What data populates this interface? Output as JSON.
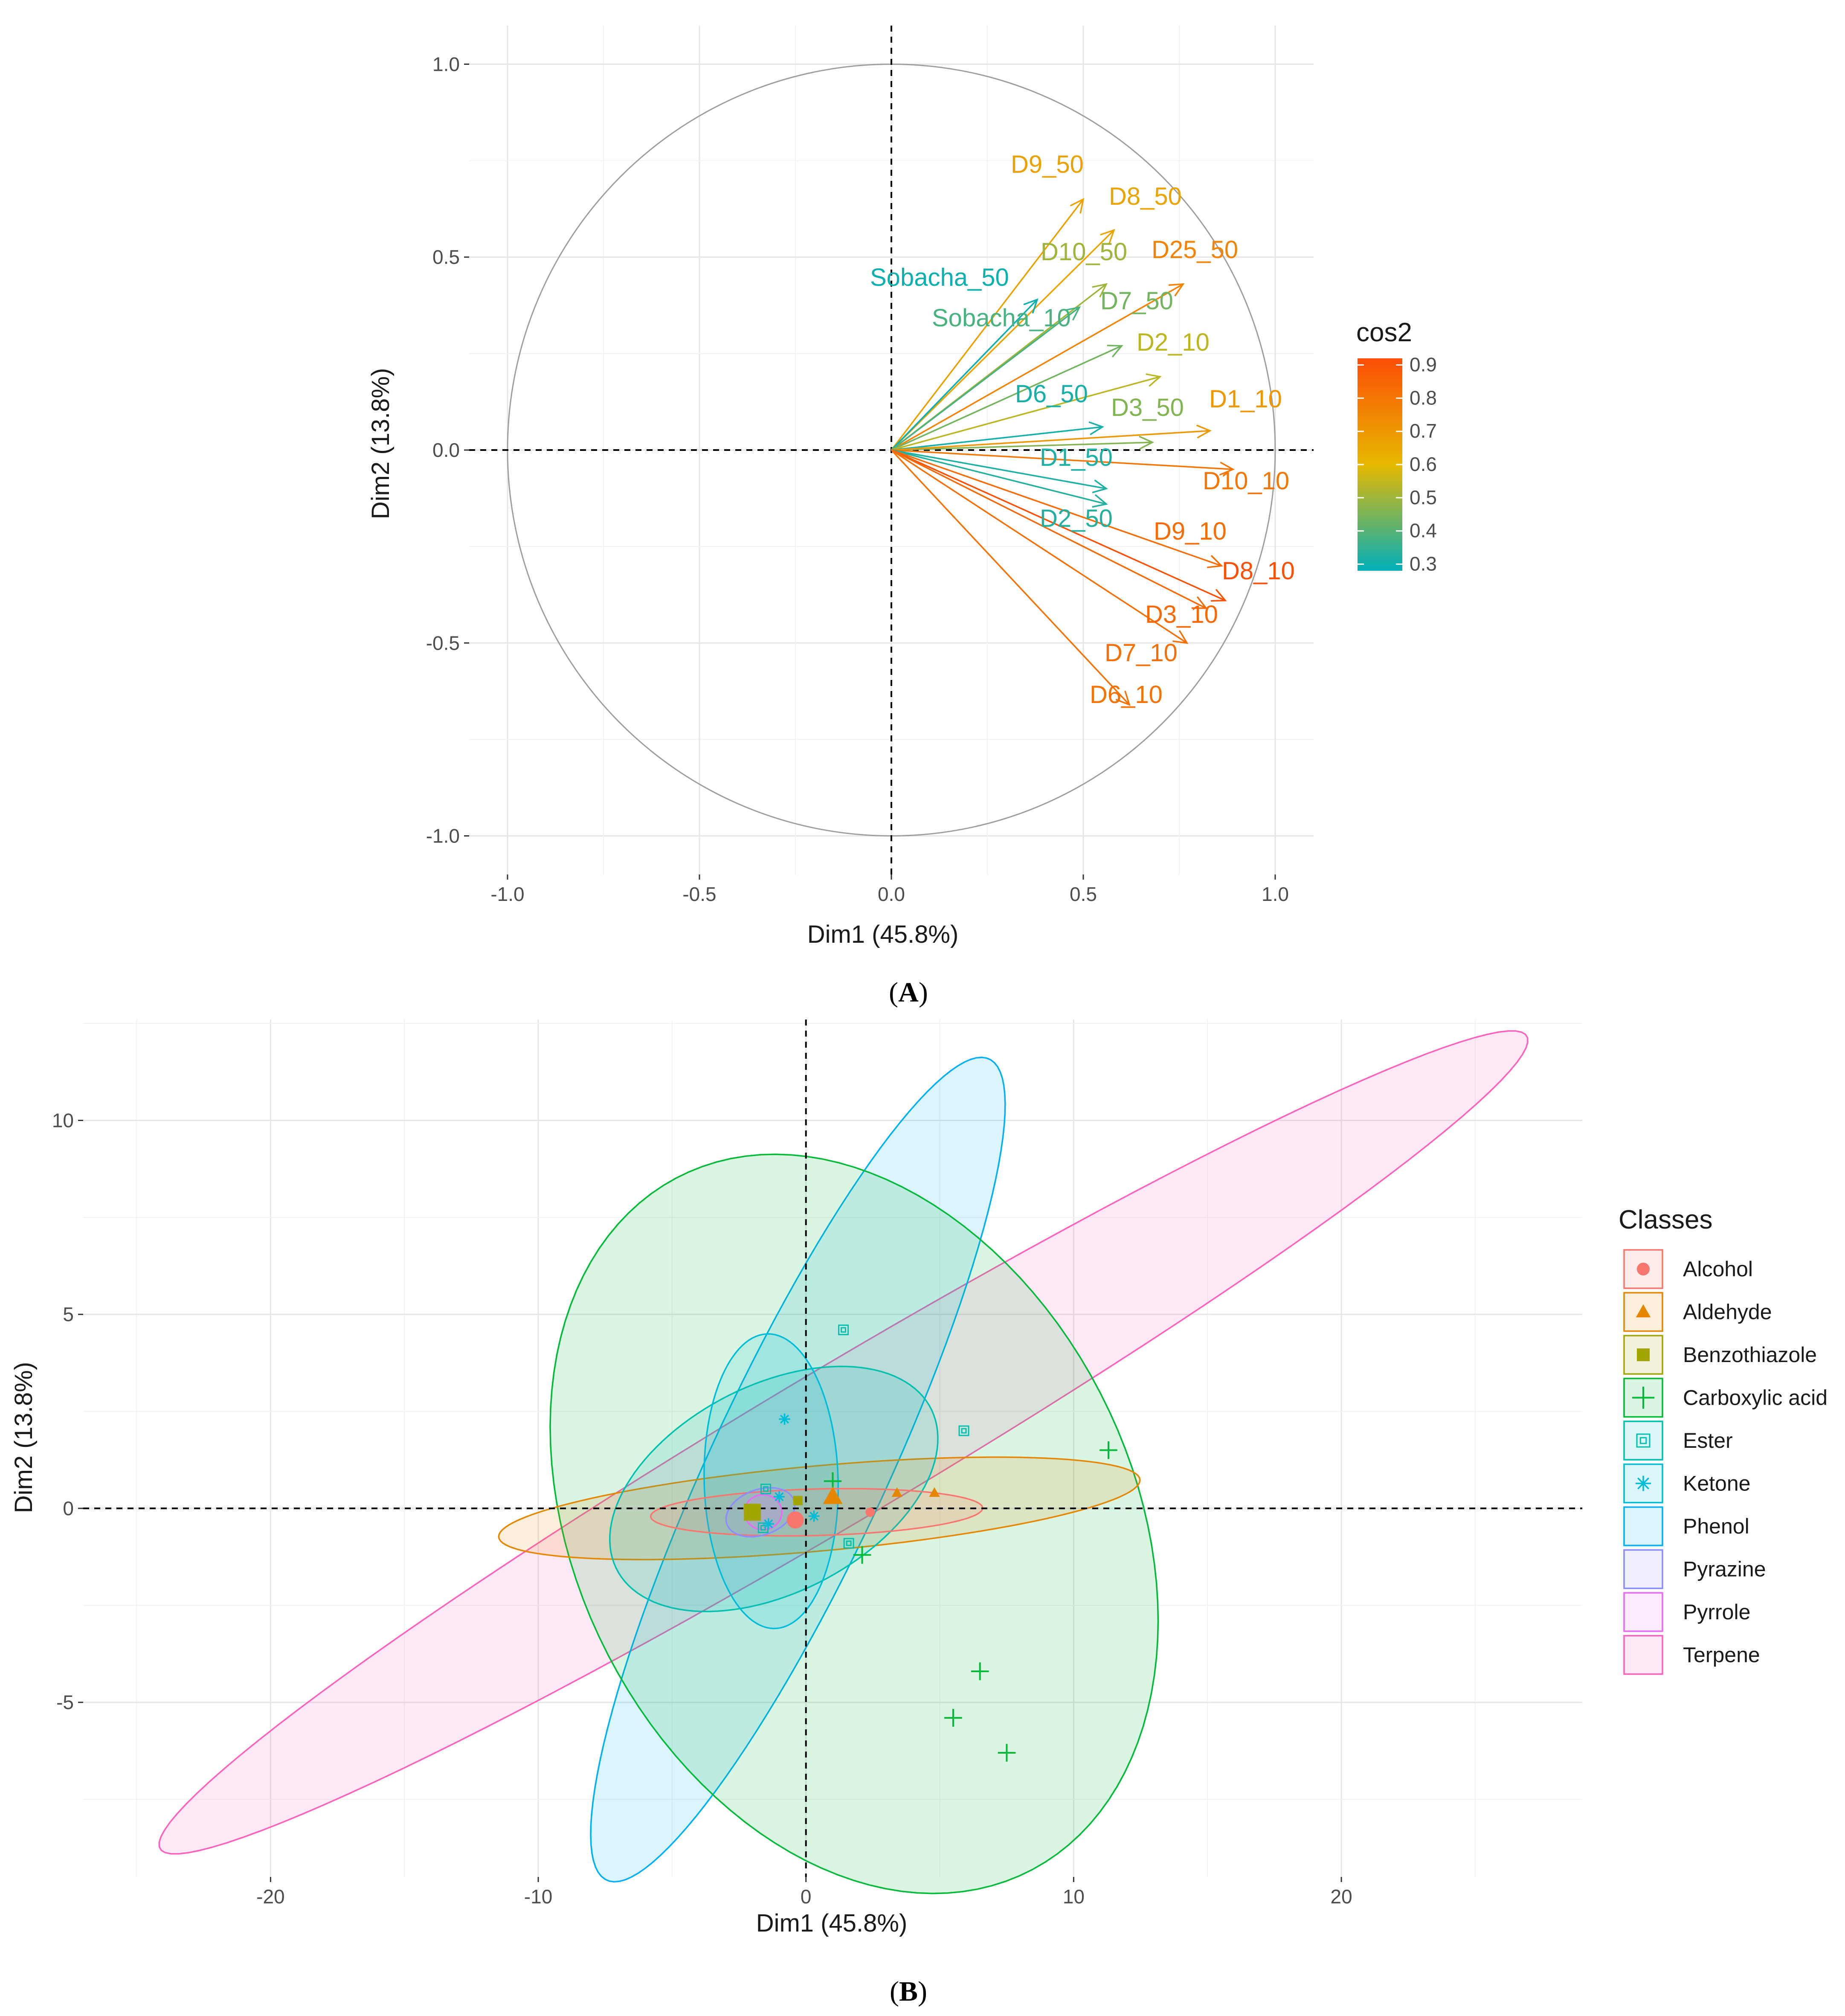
{
  "chart_data": [
    {
      "type": "scatter",
      "subtype": "pca-variable-correlation-circle",
      "caption": "A",
      "xlabel": "Dim1 (45.8%)",
      "ylabel": "Dim2 (13.8%)",
      "xlim": [
        -1.1,
        1.1
      ],
      "ylim": [
        -1.1,
        1.1
      ],
      "x_ticks": [
        "-1.0",
        "-0.5",
        "0.0",
        "0.5",
        "1.0"
      ],
      "y_ticks": [
        "-1.0",
        "-0.5",
        "0.0",
        "0.5",
        "1.0"
      ],
      "grid": true,
      "legend": {
        "title": "cos2",
        "position": "right",
        "ticks": [
          "0.9",
          "0.8",
          "0.7",
          "0.6",
          "0.5",
          "0.4",
          "0.3"
        ],
        "range": [
          0.28,
          0.92
        ]
      },
      "variables": [
        {
          "name": "D9_50",
          "x": 0.5,
          "y": 0.65,
          "cos2": 0.67
        },
        {
          "name": "D8_50",
          "x": 0.58,
          "y": 0.57,
          "cos2": 0.66
        },
        {
          "name": "D25_50",
          "x": 0.76,
          "y": 0.43,
          "cos2": 0.76
        },
        {
          "name": "D10_50",
          "x": 0.56,
          "y": 0.43,
          "cos2": 0.5
        },
        {
          "name": "Sobacha_50",
          "x": 0.38,
          "y": 0.39,
          "cos2": 0.3
        },
        {
          "name": "Sobacha_10",
          "x": 0.49,
          "y": 0.37,
          "cos2": 0.38
        },
        {
          "name": "D7_50",
          "x": 0.6,
          "y": 0.27,
          "cos2": 0.44
        },
        {
          "name": "D2_10",
          "x": 0.7,
          "y": 0.19,
          "cos2": 0.54
        },
        {
          "name": "D6_50",
          "x": 0.55,
          "y": 0.06,
          "cos2": 0.31
        },
        {
          "name": "D3_50",
          "x": 0.68,
          "y": 0.02,
          "cos2": 0.46
        },
        {
          "name": "D1_10",
          "x": 0.83,
          "y": 0.05,
          "cos2": 0.7
        },
        {
          "name": "D10_10",
          "x": 0.89,
          "y": -0.05,
          "cos2": 0.8
        },
        {
          "name": "D1_50",
          "x": 0.56,
          "y": -0.1,
          "cos2": 0.32
        },
        {
          "name": "D2_50",
          "x": 0.56,
          "y": -0.14,
          "cos2": 0.33
        },
        {
          "name": "D9_10",
          "x": 0.86,
          "y": -0.3,
          "cos2": 0.83
        },
        {
          "name": "D8_10",
          "x": 0.87,
          "y": -0.39,
          "cos2": 0.91
        },
        {
          "name": "D3_10",
          "x": 0.82,
          "y": -0.41,
          "cos2": 0.84
        },
        {
          "name": "D7_10",
          "x": 0.77,
          "y": -0.5,
          "cos2": 0.82
        },
        {
          "name": "D6_10",
          "x": 0.62,
          "y": -0.66,
          "cos2": 0.81
        }
      ]
    },
    {
      "type": "scatter",
      "subtype": "pca-individuals-with-confidence-ellipses",
      "caption": "B",
      "xlabel": "Dim1 (45.8%)",
      "ylabel": "Dim2 (13.8%)",
      "xlim": [
        -27,
        29
      ],
      "ylim": [
        -9.5,
        12.6
      ],
      "x_ticks": [
        "-20",
        "-10",
        "0",
        "10",
        "20"
      ],
      "y_ticks": [
        "-5",
        "0",
        "5",
        "10"
      ],
      "grid": true,
      "legend": {
        "title": "Classes",
        "position": "right",
        "entries": [
          {
            "name": "Alcohol",
            "color": "#F8766D",
            "shape": "circle"
          },
          {
            "name": "Aldehyde",
            "color": "#E58700",
            "shape": "triangle"
          },
          {
            "name": "Benzothiazole",
            "color": "#A3A500",
            "shape": "square"
          },
          {
            "name": "Carboxylic acid",
            "color": "#00BA38",
            "shape": "plus"
          },
          {
            "name": "Ester",
            "color": "#00C0AF",
            "shape": "boxed-square"
          },
          {
            "name": "Ketone",
            "color": "#00BCD8",
            "shape": "asterisk"
          },
          {
            "name": "Phenol",
            "color": "#00B0F6",
            "shape": "none"
          },
          {
            "name": "Pyrazine",
            "color": "#8C8CFF",
            "shape": "none"
          },
          {
            "name": "Pyrrole",
            "color": "#E76BF3",
            "shape": "none"
          },
          {
            "name": "Terpene",
            "color": "#FF62BC",
            "shape": "none"
          }
        ]
      },
      "ellipses": [
        {
          "class": "Terpene",
          "cx": 1.4,
          "cy": 1.7,
          "rx": 27.6,
          "ry": 2.1,
          "angle_deg": 22.2
        },
        {
          "class": "Phenol",
          "cx": -0.3,
          "cy": 1.0,
          "rx": 12.8,
          "ry": 3.0,
          "angle_deg": 55
        },
        {
          "class": "Carboxylic acid",
          "cx": 1.8,
          "cy": -0.4,
          "rx": 12.0,
          "ry": 8.7,
          "angle_deg": -28
        },
        {
          "class": "Aldehyde",
          "cx": 0.5,
          "cy": 0.0,
          "rx": 12.0,
          "ry": 1.1,
          "angle_deg": 3.5
        },
        {
          "class": "Ester",
          "cx": -1.2,
          "cy": 0.5,
          "rx": 6.3,
          "ry": 2.8,
          "angle_deg": 15
        },
        {
          "class": "Ketone",
          "cx": -1.3,
          "cy": 0.7,
          "rx": 3.8,
          "ry": 2.5,
          "angle_deg": 93
        },
        {
          "class": "Alcohol",
          "cx": 0.4,
          "cy": -0.1,
          "rx": 6.2,
          "ry": 0.6,
          "angle_deg": 1
        },
        {
          "class": "Pyrazine",
          "cx": -1.7,
          "cy": -0.1,
          "rx": 1.3,
          "ry": 0.6,
          "angle_deg": 10
        },
        {
          "class": "Pyrrole",
          "cx": -1.6,
          "cy": -0.1,
          "rx": 0.7,
          "ry": 0.45,
          "angle_deg": 0
        }
      ],
      "points": [
        {
          "class": "Carboxylic acid",
          "x": 11.3,
          "y": 1.5
        },
        {
          "class": "Carboxylic acid",
          "x": 6.5,
          "y": -4.2
        },
        {
          "class": "Carboxylic acid",
          "x": 5.5,
          "y": -5.4
        },
        {
          "class": "Carboxylic acid",
          "x": 7.5,
          "y": -6.3
        },
        {
          "class": "Carboxylic acid",
          "x": 2.1,
          "y": -1.2
        },
        {
          "class": "Carboxylic acid",
          "x": 1.0,
          "y": 0.7
        },
        {
          "class": "Ester",
          "x": 1.4,
          "y": 4.6
        },
        {
          "class": "Ester",
          "x": 5.9,
          "y": 2.0
        },
        {
          "class": "Ester",
          "x": 1.6,
          "y": -0.9
        },
        {
          "class": "Ester",
          "x": -1.5,
          "y": 0.5
        },
        {
          "class": "Ester",
          "x": -1.6,
          "y": -0.5
        },
        {
          "class": "Ketone",
          "x": -0.8,
          "y": 2.3
        },
        {
          "class": "Ketone",
          "x": -1.0,
          "y": 0.3
        },
        {
          "class": "Ketone",
          "x": 0.3,
          "y": -0.2
        },
        {
          "class": "Ketone",
          "x": -1.4,
          "y": -0.4
        },
        {
          "class": "Alcohol",
          "x": 2.4,
          "y": -0.1
        },
        {
          "class": "Alcohol",
          "x": -0.4,
          "y": -0.3
        },
        {
          "class": "Aldehyde",
          "x": 1.0,
          "y": 0.3
        },
        {
          "class": "Aldehyde",
          "x": 3.4,
          "y": 0.4
        },
        {
          "class": "Aldehyde",
          "x": 4.8,
          "y": 0.4
        },
        {
          "class": "Benzothiazole",
          "x": -2.0,
          "y": -0.1
        },
        {
          "class": "Benzothiazole",
          "x": -0.3,
          "y": 0.2
        }
      ]
    }
  ]
}
